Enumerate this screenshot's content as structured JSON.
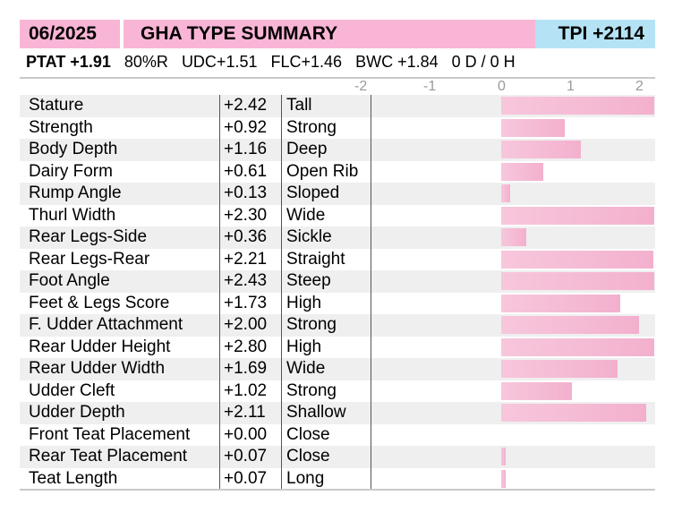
{
  "header": {
    "date": "06/2025",
    "title": "GHA TYPE SUMMARY",
    "tpi": "TPI +2114"
  },
  "summary": {
    "ptat": "PTAT +1.91",
    "reliability": "80%R",
    "udc": "UDC+1.51",
    "flc": "FLC+1.46",
    "bwc": "BWC +1.84",
    "daughters_herds": "0 D /  0 H"
  },
  "axis_ticks": [
    "-2",
    "-1",
    "0",
    "1",
    "2"
  ],
  "colors": {
    "header_pink": "#f9b5d6",
    "header_blue": "#b5e3f5",
    "bar_pink": "#f5bcd5"
  },
  "traits": [
    {
      "name": "Stature",
      "value": "+2.42",
      "desc": "Tall",
      "bar": 2.42
    },
    {
      "name": "Strength",
      "value": "+0.92",
      "desc": "Strong",
      "bar": 0.92
    },
    {
      "name": "Body Depth",
      "value": "+1.16",
      "desc": "Deep",
      "bar": 1.16
    },
    {
      "name": "Dairy Form",
      "value": "+0.61",
      "desc": "Open Rib",
      "bar": 0.61
    },
    {
      "name": "Rump Angle",
      "value": "+0.13",
      "desc": "Sloped",
      "bar": 0.13
    },
    {
      "name": "Thurl Width",
      "value": "+2.30",
      "desc": "Wide",
      "bar": 2.3
    },
    {
      "name": "Rear Legs-Side",
      "value": "+0.36",
      "desc": "Sickle",
      "bar": 0.36
    },
    {
      "name": "Rear Legs-Rear",
      "value": "+2.21",
      "desc": "Straight",
      "bar": 2.21
    },
    {
      "name": "Foot Angle",
      "value": "+2.43",
      "desc": "Steep",
      "bar": 2.43
    },
    {
      "name": "Feet & Legs Score",
      "value": "+1.73",
      "desc": "High",
      "bar": 1.73
    },
    {
      "name": "F. Udder Attachment",
      "value": "+2.00",
      "desc": "Strong",
      "bar": 2.0
    },
    {
      "name": "Rear Udder Height",
      "value": "+2.80",
      "desc": "High",
      "bar": 2.8
    },
    {
      "name": "Rear Udder Width",
      "value": "+1.69",
      "desc": "Wide",
      "bar": 1.69
    },
    {
      "name": "Udder Cleft",
      "value": "+1.02",
      "desc": "Strong",
      "bar": 1.02
    },
    {
      "name": "Udder Depth",
      "value": "+2.11",
      "desc": "Shallow",
      "bar": 2.11
    },
    {
      "name": "Front Teat Placement",
      "value": "+0.00",
      "desc": "Close",
      "bar": 0.0
    },
    {
      "name": "Rear Teat Placement",
      "value": "+0.07",
      "desc": "Close",
      "bar": 0.07
    },
    {
      "name": "Teat Length",
      "value": "+0.07",
      "desc": "Long",
      "bar": 0.07
    }
  ]
}
